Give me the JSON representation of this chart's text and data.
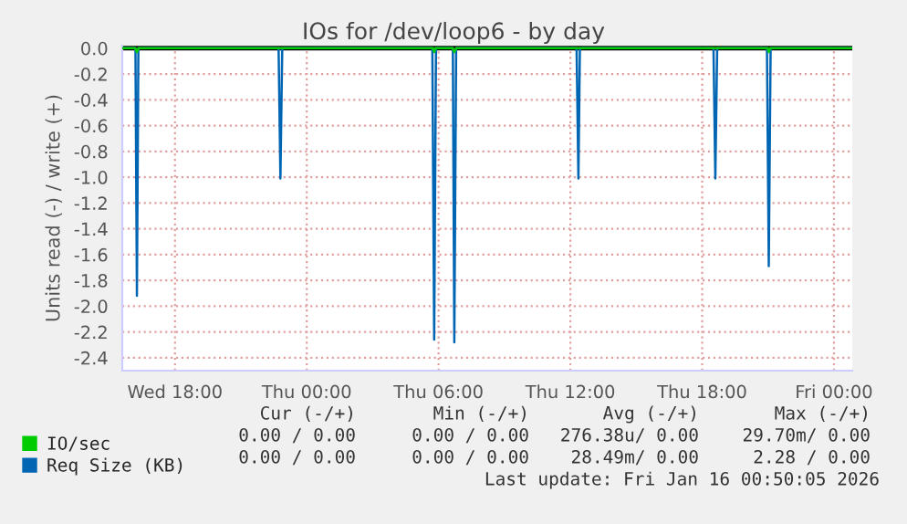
{
  "chart_data": {
    "type": "line",
    "title": "IOs for /dev/loop6 - by day",
    "ylabel": "Units read (-) / write (+)",
    "series": [
      {
        "name": "IO/sec",
        "color": "#00cc00",
        "x": [
          "2026-01-14T15:36",
          "2026-01-14T16:12",
          "2026-01-14T16:16",
          "2026-01-14T16:20",
          "2026-01-15T05:45",
          "2026-01-15T05:48",
          "2026-01-15T05:51",
          "2026-01-15T06:39",
          "2026-01-15T06:43",
          "2026-01-15T06:48",
          "2026-01-15T21:00",
          "2026-01-15T21:02",
          "2026-01-15T21:06",
          "2026-01-16T00:50"
        ],
        "values": [
          0,
          0,
          -0.03,
          0,
          0,
          -0.03,
          0,
          0,
          -0.03,
          0,
          0,
          -0.03,
          0,
          0
        ]
      },
      {
        "name": "Req Size (KB)",
        "color": "#0066b3",
        "x": [
          "2026-01-14T15:36",
          "2026-01-14T16:12",
          "2026-01-14T16:16",
          "2026-01-14T16:20",
          "2026-01-14T22:43",
          "2026-01-14T22:48",
          "2026-01-14T22:53",
          "2026-01-15T05:43",
          "2026-01-15T05:48",
          "2026-01-15T05:53",
          "2026-01-15T06:39",
          "2026-01-15T06:43",
          "2026-01-15T06:48",
          "2026-01-15T12:17",
          "2026-01-15T12:22",
          "2026-01-15T12:26",
          "2026-01-15T18:31",
          "2026-01-15T18:36",
          "2026-01-15T18:41",
          "2026-01-15T20:57",
          "2026-01-15T21:02",
          "2026-01-15T21:07",
          "2026-01-16T00:50"
        ],
        "values": [
          0,
          0,
          -1.92,
          0,
          0,
          -1.01,
          0,
          0,
          -2.26,
          0,
          0,
          -2.28,
          0,
          0,
          -1.01,
          0,
          0,
          -1.01,
          0,
          0,
          -1.69,
          0,
          0
        ]
      }
    ],
    "xlim": [
      "2026-01-14T15:36",
      "2026-01-16T00:50"
    ],
    "xticks": [
      {
        "value": "2026-01-14T18:00",
        "label": "Wed 18:00"
      },
      {
        "value": "2026-01-15T00:00",
        "label": "Thu 00:00"
      },
      {
        "value": "2026-01-15T06:00",
        "label": "Thu 06:00"
      },
      {
        "value": "2026-01-15T12:00",
        "label": "Thu 12:00"
      },
      {
        "value": "2026-01-15T18:00",
        "label": "Thu 18:00"
      },
      {
        "value": "2026-01-16T00:00",
        "label": "Fri 00:00"
      }
    ],
    "ylim": [
      -2.5,
      0.02
    ],
    "yticks": [
      {
        "value": 0,
        "label": "0.0"
      },
      {
        "value": -0.2,
        "label": "-0.2"
      },
      {
        "value": -0.4,
        "label": "-0.4"
      },
      {
        "value": -0.6,
        "label": "-0.6"
      },
      {
        "value": -0.8,
        "label": "-0.8"
      },
      {
        "value": -1.0,
        "label": "-1.0"
      },
      {
        "value": -1.2,
        "label": "-1.2"
      },
      {
        "value": -1.4,
        "label": "-1.4"
      },
      {
        "value": -1.6,
        "label": "-1.6"
      },
      {
        "value": -1.8,
        "label": "-1.8"
      },
      {
        "value": -2.0,
        "label": "-2.0"
      },
      {
        "value": -2.2,
        "label": "-2.2"
      },
      {
        "value": -2.4,
        "label": "-2.4"
      }
    ],
    "ref_lines": [
      {
        "axis": "y",
        "value": 0,
        "color": "#000000"
      }
    ],
    "grid": true,
    "legend": "bottom left",
    "annotations": [
      "Cur (-/+)",
      "Min (-/+)",
      "Avg (-/+)",
      "Max (-/+)",
      "0.00 / 0.00",
      "0.00 / 0.00",
      "276.38u/ 0.00",
      "29.70m/ 0.00",
      "0.00 / 0.00",
      "0.00 / 0.00",
      "28.49m/ 0.00",
      "2.28 / 0.00",
      "Last update: Fri Jan 16 00:50:05 2026"
    ]
  }
}
